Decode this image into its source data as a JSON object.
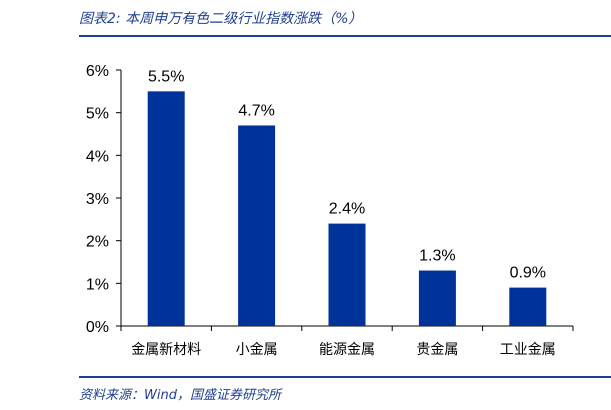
{
  "figure": {
    "title": "图表2:  本周申万有色二级行业指数涨跌（%）",
    "source": "资料来源：Wind，国盛证券研究所"
  },
  "colors": {
    "bar": "#003399",
    "rule": "#1f3f8f",
    "axis": "#000000"
  },
  "chart_data": {
    "type": "bar",
    "title": "",
    "xlabel": "",
    "ylabel": "",
    "categories": [
      "金属新材料",
      "小金属",
      "能源金属",
      "贵金属",
      "工业金属"
    ],
    "values": [
      5.5,
      4.7,
      2.4,
      1.3,
      0.9
    ],
    "data_labels": [
      "5.5%",
      "4.7%",
      "2.4%",
      "1.3%",
      "0.9%"
    ],
    "ylim": [
      0,
      6
    ],
    "y_ticks": [
      "0%",
      "1%",
      "2%",
      "3%",
      "4%",
      "5%",
      "6%"
    ],
    "grid": false,
    "legend": "none"
  }
}
